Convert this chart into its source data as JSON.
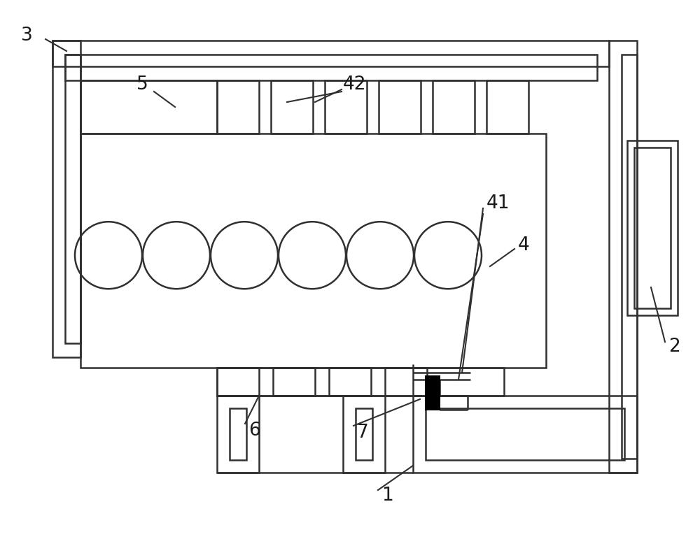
{
  "bg_color": "#ffffff",
  "line_color": "#303030",
  "lw": 1.8,
  "fig_w": 10.0,
  "fig_h": 7.81,
  "label_fs": 19
}
